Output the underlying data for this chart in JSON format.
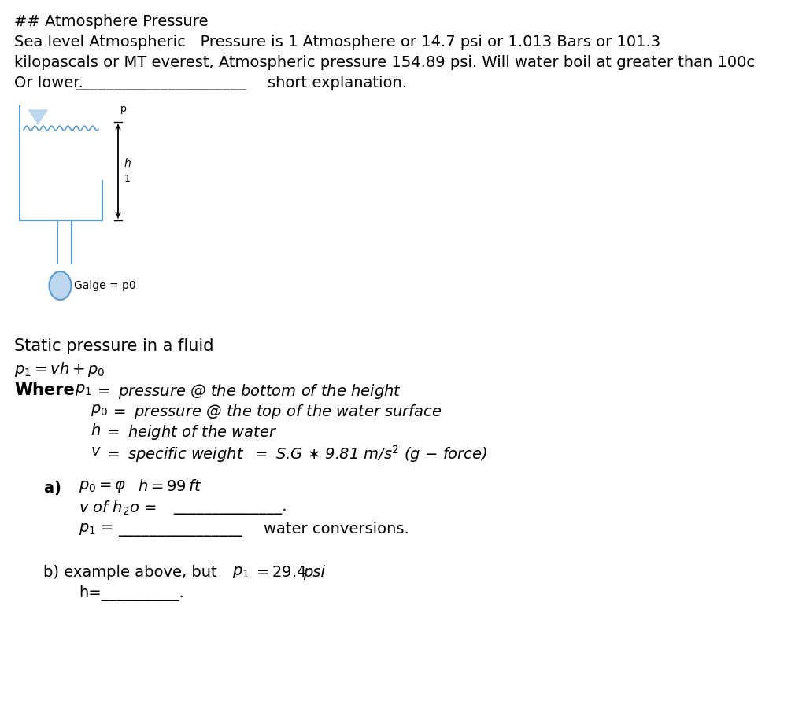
{
  "bg_color": "#ffffff",
  "text_color": "#000000",
  "diagram_color": "#5b9bd5",
  "diagram_fill": "#bdd7ee",
  "title": "## Atmosphere Pressure",
  "line1": "Sea level Atmospheric   Pressure is 1 Atmosphere or 14.7 psi or 1.013 Bars or 101.3",
  "line2": "kilopascals or MT everest, Atmospheric pressure 154.89 psi. Will water boil at greater than 100c",
  "line3a": "Or lower.",
  "line3b": "____________________",
  "line3c": "short explanation.",
  "section_static": "Static pressure in a fluid",
  "gauge_label": "Galge = p0",
  "font_size": 14
}
